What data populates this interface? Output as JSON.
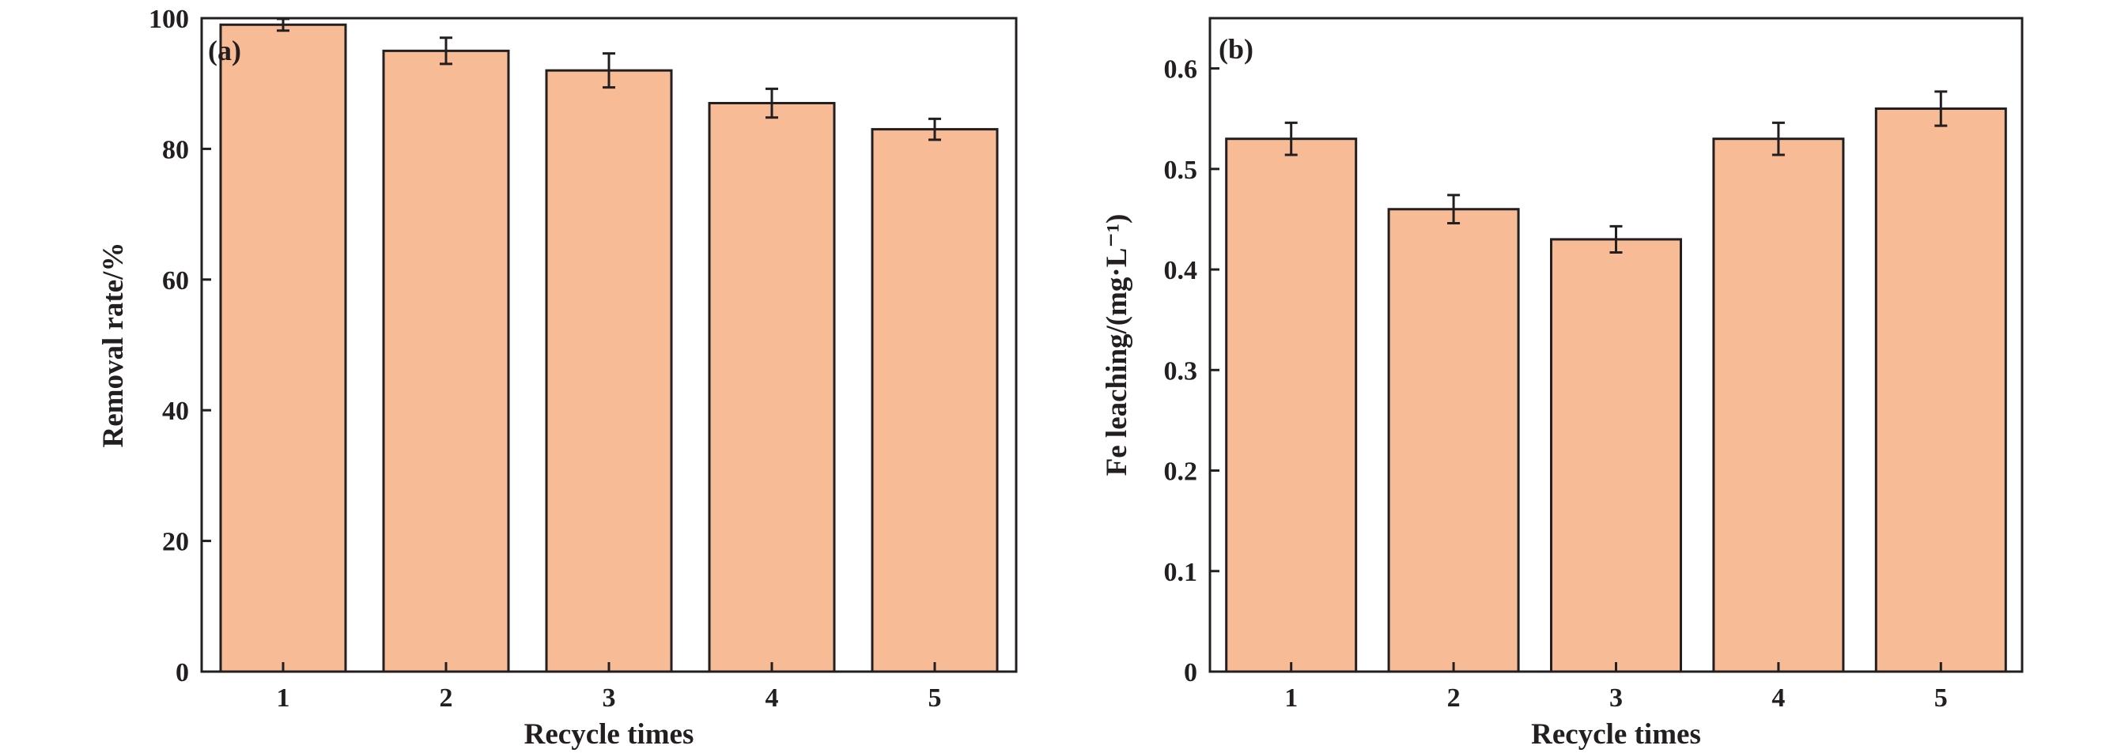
{
  "colors": {
    "bar_fill": "#f7bb96",
    "stroke": "#231f20"
  },
  "chart_data": [
    {
      "type": "bar",
      "panel_label": "(a)",
      "xlabel": "Recycle times",
      "ylabel": "Removal rate/%",
      "categories": [
        "1",
        "2",
        "3",
        "4",
        "5"
      ],
      "values": [
        99,
        95,
        92,
        87,
        83
      ],
      "errors": [
        0.9,
        2.0,
        2.6,
        2.2,
        1.6
      ],
      "ylim": [
        0,
        100
      ],
      "yticks": [
        0,
        20,
        40,
        60,
        80,
        100
      ],
      "ytick_labels": [
        "0",
        "20",
        "40",
        "60",
        "80",
        "100"
      ],
      "grid": false
    },
    {
      "type": "bar",
      "panel_label": "(b)",
      "xlabel": "Recycle times",
      "ylabel": "Fe leaching/(mg·L⁻¹)",
      "categories": [
        "1",
        "2",
        "3",
        "4",
        "5"
      ],
      "values": [
        0.53,
        0.46,
        0.43,
        0.53,
        0.56
      ],
      "errors": [
        0.016,
        0.014,
        0.013,
        0.016,
        0.017
      ],
      "ylim": [
        0,
        0.65
      ],
      "yticks": [
        0,
        0.1,
        0.2,
        0.3,
        0.4,
        0.5,
        0.6
      ],
      "ytick_labels": [
        "0",
        "0.1",
        "0.2",
        "0.3",
        "0.4",
        "0.5",
        "0.6"
      ],
      "grid": false
    }
  ]
}
